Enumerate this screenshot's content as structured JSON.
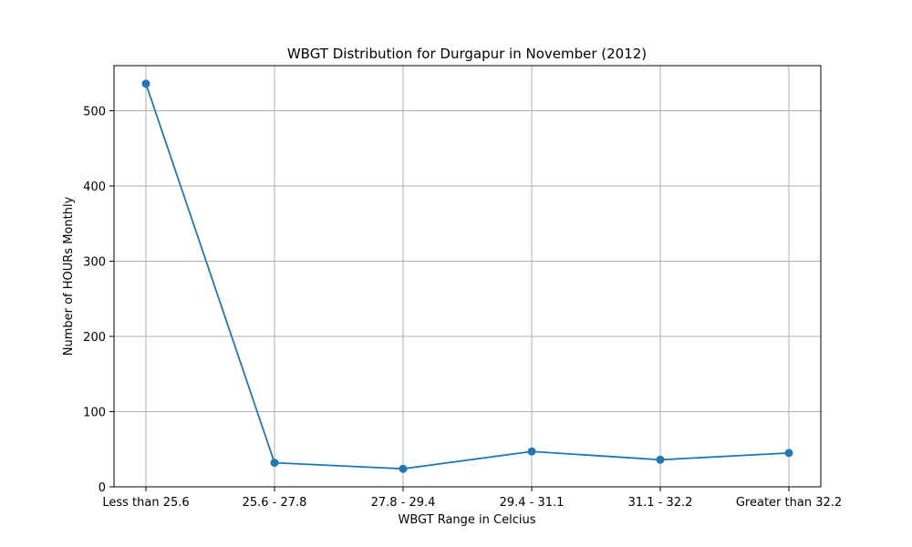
{
  "chart_data": {
    "type": "line",
    "title": "WBGT Distribution for Durgapur in November (2012)",
    "xlabel": "WBGT Range in Celcius",
    "ylabel": "Number of HOURs Monthly",
    "categories": [
      "Less than 25.6",
      "25.6 - 27.8",
      "27.8 - 29.4",
      "29.4 - 31.1",
      "31.1 - 32.2",
      "Greater than 32.2"
    ],
    "values": [
      536,
      32,
      24,
      47,
      36,
      45
    ],
    "ylim": [
      0,
      560
    ],
    "yticks": [
      0,
      100,
      200,
      300,
      400,
      500
    ],
    "grid": true,
    "color": "#1f77b4"
  }
}
